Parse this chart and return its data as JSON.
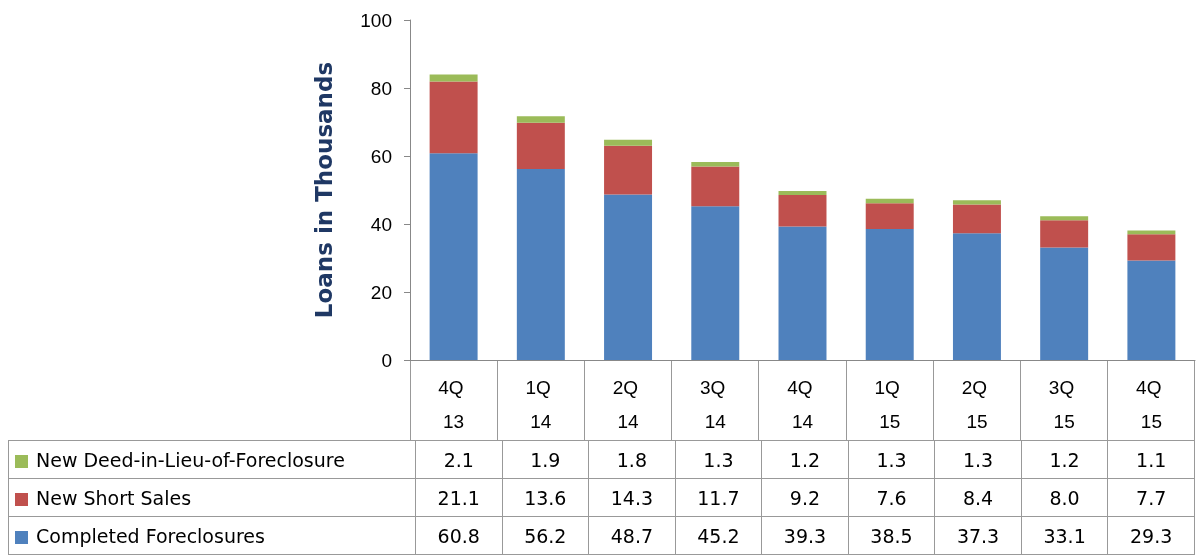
{
  "chart_data": {
    "type": "bar",
    "stacked": true,
    "ylabel": "Loans in Thousands",
    "categories": [
      "4Q 13",
      "1Q 14",
      "2Q 14",
      "3Q 14",
      "4Q 14",
      "1Q 15",
      "2Q 15",
      "3Q 15",
      "4Q 15"
    ],
    "series": [
      {
        "name": "Completed Foreclosures",
        "color": "#4f81bd",
        "values": [
          60.8,
          56.2,
          48.7,
          45.2,
          39.3,
          38.5,
          37.3,
          33.1,
          29.3
        ],
        "value_labels": [
          "60.8",
          "56.2",
          "48.7",
          "45.2",
          "39.3",
          "38.5",
          "37.3",
          "33.1",
          "29.3"
        ]
      },
      {
        "name": "New Short Sales",
        "color": "#c0504d",
        "values": [
          21.1,
          13.6,
          14.3,
          11.7,
          9.2,
          7.6,
          8.4,
          8.0,
          7.7
        ],
        "value_labels": [
          "21.1",
          "13.6",
          "14.3",
          "11.7",
          "9.2",
          "7.6",
          "8.4",
          "8.0",
          "7.7"
        ]
      },
      {
        "name": "New Deed-in-Lieu-of-Foreclosure",
        "color": "#9bbb59",
        "values": [
          2.1,
          1.9,
          1.8,
          1.3,
          1.2,
          1.3,
          1.3,
          1.2,
          1.1
        ],
        "value_labels": [
          "2.1",
          "1.9",
          "1.8",
          "1.3",
          "1.2",
          "1.3",
          "1.3",
          "1.2",
          "1.1"
        ]
      }
    ],
    "ylim": [
      0,
      100
    ],
    "yticks": [
      0,
      20,
      40,
      60,
      80,
      100
    ],
    "grid": false,
    "legend": "bottom"
  }
}
